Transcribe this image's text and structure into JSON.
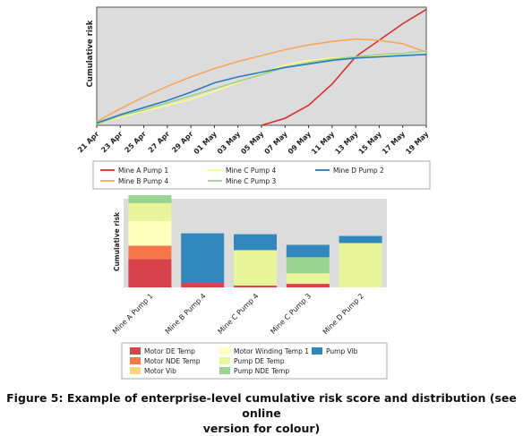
{
  "chart_data": [
    {
      "type": "line",
      "ylabel": "Cumulative risk",
      "x": [
        "21 Apr",
        "23 Apr",
        "25 Apr",
        "27 Apr",
        "29 Apr",
        "01 May",
        "03 May",
        "05 May",
        "07 May",
        "09 May",
        "11 May",
        "13 May",
        "15 May",
        "17 May",
        "19 May"
      ],
      "ylim": [
        0,
        100
      ],
      "grid": false,
      "legend_position": "bottom",
      "series": [
        {
          "name": "Mine A Pump 1",
          "color": "#d6302b",
          "values": [
            null,
            null,
            null,
            null,
            null,
            null,
            null,
            0,
            6,
            17,
            35,
            58,
            72,
            86,
            98
          ]
        },
        {
          "name": "Mine B Pump 4",
          "color": "#f5a85a",
          "values": [
            3,
            14,
            24,
            33,
            41,
            48,
            54,
            59,
            64,
            68,
            71,
            73,
            72,
            69,
            62
          ]
        },
        {
          "name": "Mine C Pump 4",
          "color": "#fbfb8c",
          "values": [
            1,
            7,
            12,
            17,
            22,
            29,
            36,
            44,
            51,
            55,
            57,
            57,
            59,
            61,
            63
          ]
        },
        {
          "name": "Mine C Pump 3",
          "color": "#9ed28f",
          "values": [
            1,
            8,
            13,
            19,
            25,
            31,
            37,
            43,
            49,
            53,
            56,
            58,
            60,
            61,
            63
          ]
        },
        {
          "name": "Mine D Pump 2",
          "color": "#2b7bbd",
          "values": [
            2,
            9,
            15,
            21,
            28,
            36,
            41,
            45,
            49,
            52,
            55,
            57,
            58,
            59,
            60
          ]
        }
      ]
    },
    {
      "type": "bar",
      "stacked": true,
      "ylabel": "Cumulative risk",
      "categories": [
        "Mine A Pump 1",
        "Mine B Pump 4",
        "Mine C Pump 4",
        "Mine C Pump 3",
        "Mine D Pump 2"
      ],
      "ylim": [
        0,
        100
      ],
      "legend_position": "bottom",
      "series": [
        {
          "name": "Motor DE Temp",
          "color": "#d7434d",
          "values": [
            32,
            5,
            2,
            4,
            0
          ]
        },
        {
          "name": "Motor NDE Temp",
          "color": "#f5774a",
          "values": [
            15,
            0,
            0,
            0,
            0
          ]
        },
        {
          "name": "Motor Vib",
          "color": "#fdd580",
          "values": [
            0,
            0,
            0,
            0,
            0
          ]
        },
        {
          "name": "Motor Winding Temp 1",
          "color": "#ffffbe",
          "values": [
            28,
            0,
            0,
            0,
            0
          ]
        },
        {
          "name": "Pump DE Temp",
          "color": "#e9f59b",
          "values": [
            20,
            0,
            40,
            12,
            50
          ]
        },
        {
          "name": "Pump NDE Temp",
          "color": "#99d493",
          "values": [
            10,
            0,
            0,
            18,
            0
          ]
        },
        {
          "name": "Pump Vib",
          "color": "#3288bd",
          "values": [
            0,
            56,
            18,
            14,
            8
          ]
        }
      ]
    }
  ],
  "caption_line1": "Figure 5: Example of enterprise-level cumulative risk score and distribution (see online",
  "caption_line2": "version for colour)"
}
